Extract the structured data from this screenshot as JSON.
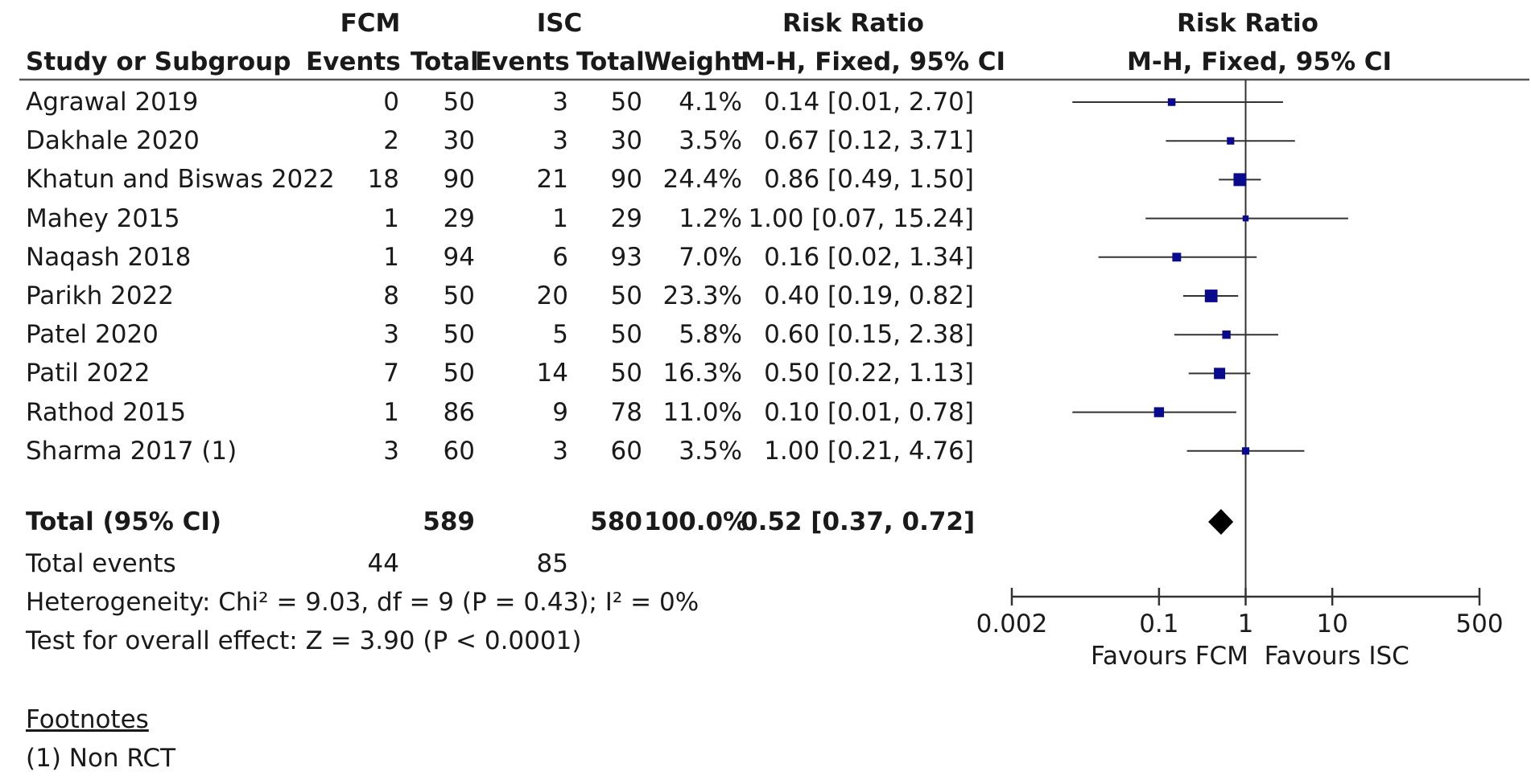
{
  "header": {
    "group1": "FCM",
    "group2": "ISC",
    "rr_title": "Risk Ratio",
    "plot_title": "Risk Ratio",
    "col_study": "Study or Subgroup",
    "col_events1": "Events",
    "col_total1": "Total",
    "col_events2": "Events",
    "col_total2": "Total",
    "col_weight": "Weight",
    "col_method": "M-H, Fixed, 95% CI",
    "plot_method": "M-H, Fixed, 95% CI"
  },
  "chart_data": {
    "type": "forest",
    "scale": "log",
    "null_value": 1,
    "xlim": [
      0.002,
      500
    ],
    "x_ticks": [
      0.002,
      0.1,
      1,
      10,
      500
    ],
    "x_tick_labels": [
      "0.002",
      "0.1",
      "1",
      "10",
      "500"
    ],
    "favours_left": "Favours FCM",
    "favours_right": "Favours ISC",
    "studies": [
      {
        "name": "Agrawal 2019",
        "e1": "0",
        "n1": "50",
        "e2": "3",
        "n2": "50",
        "weight": "4.1%",
        "ci_text": "0.14 [0.01, 2.70]",
        "rr": 0.14,
        "lo": 0.01,
        "hi": 2.7,
        "w": 4.1
      },
      {
        "name": "Dakhale 2020",
        "e1": "2",
        "n1": "30",
        "e2": "3",
        "n2": "30",
        "weight": "3.5%",
        "ci_text": "0.67 [0.12, 3.71]",
        "rr": 0.67,
        "lo": 0.12,
        "hi": 3.71,
        "w": 3.5
      },
      {
        "name": "Khatun and Biswas 2022",
        "e1": "18",
        "n1": "90",
        "e2": "21",
        "n2": "90",
        "weight": "24.4%",
        "ci_text": "0.86 [0.49, 1.50]",
        "rr": 0.86,
        "lo": 0.49,
        "hi": 1.5,
        "w": 24.4
      },
      {
        "name": "Mahey 2015",
        "e1": "1",
        "n1": "29",
        "e2": "1",
        "n2": "29",
        "weight": "1.2%",
        "ci_text": "1.00 [0.07, 15.24]",
        "rr": 1.0,
        "lo": 0.07,
        "hi": 15.24,
        "w": 1.2
      },
      {
        "name": "Naqash 2018",
        "e1": "1",
        "n1": "94",
        "e2": "6",
        "n2": "93",
        "weight": "7.0%",
        "ci_text": "0.16 [0.02, 1.34]",
        "rr": 0.16,
        "lo": 0.02,
        "hi": 1.34,
        "w": 7.0
      },
      {
        "name": "Parikh 2022",
        "e1": "8",
        "n1": "50",
        "e2": "20",
        "n2": "50",
        "weight": "23.3%",
        "ci_text": "0.40 [0.19, 0.82]",
        "rr": 0.4,
        "lo": 0.19,
        "hi": 0.82,
        "w": 23.3
      },
      {
        "name": "Patel 2020",
        "e1": "3",
        "n1": "50",
        "e2": "5",
        "n2": "50",
        "weight": "5.8%",
        "ci_text": "0.60 [0.15, 2.38]",
        "rr": 0.6,
        "lo": 0.15,
        "hi": 2.38,
        "w": 5.8
      },
      {
        "name": "Patil 2022",
        "e1": "7",
        "n1": "50",
        "e2": "14",
        "n2": "50",
        "weight": "16.3%",
        "ci_text": "0.50 [0.22, 1.13]",
        "rr": 0.5,
        "lo": 0.22,
        "hi": 1.13,
        "w": 16.3
      },
      {
        "name": "Rathod 2015",
        "e1": "1",
        "n1": "86",
        "e2": "9",
        "n2": "78",
        "weight": "11.0%",
        "ci_text": "0.10 [0.01, 0.78]",
        "rr": 0.1,
        "lo": 0.01,
        "hi": 0.78,
        "w": 11.0
      },
      {
        "name": "Sharma 2017 (1)",
        "e1": "3",
        "n1": "60",
        "e2": "3",
        "n2": "60",
        "weight": "3.5%",
        "ci_text": "1.00 [0.21, 4.76]",
        "rr": 1.0,
        "lo": 0.21,
        "hi": 4.76,
        "w": 3.5
      }
    ],
    "total": {
      "label": "Total (95% CI)",
      "n1": "589",
      "n2": "580",
      "weight": "100.0%",
      "ci_text": "0.52 [0.37, 0.72]",
      "rr": 0.52,
      "lo": 0.37,
      "hi": 0.72
    },
    "total_events": {
      "label": "Total events",
      "e1": "44",
      "e2": "85"
    },
    "heterogeneity": "Heterogeneity: Chi² = 9.03, df = 9 (P = 0.43); I² = 0%",
    "overall_effect": "Test for overall effect: Z = 3.90 (P < 0.0001)"
  },
  "colors": {
    "marker": "#0a0a8c",
    "line": "#333333",
    "diamond": "#000000"
  },
  "footnotes": {
    "title": "Footnotes",
    "items": [
      "(1) Non RCT"
    ]
  }
}
